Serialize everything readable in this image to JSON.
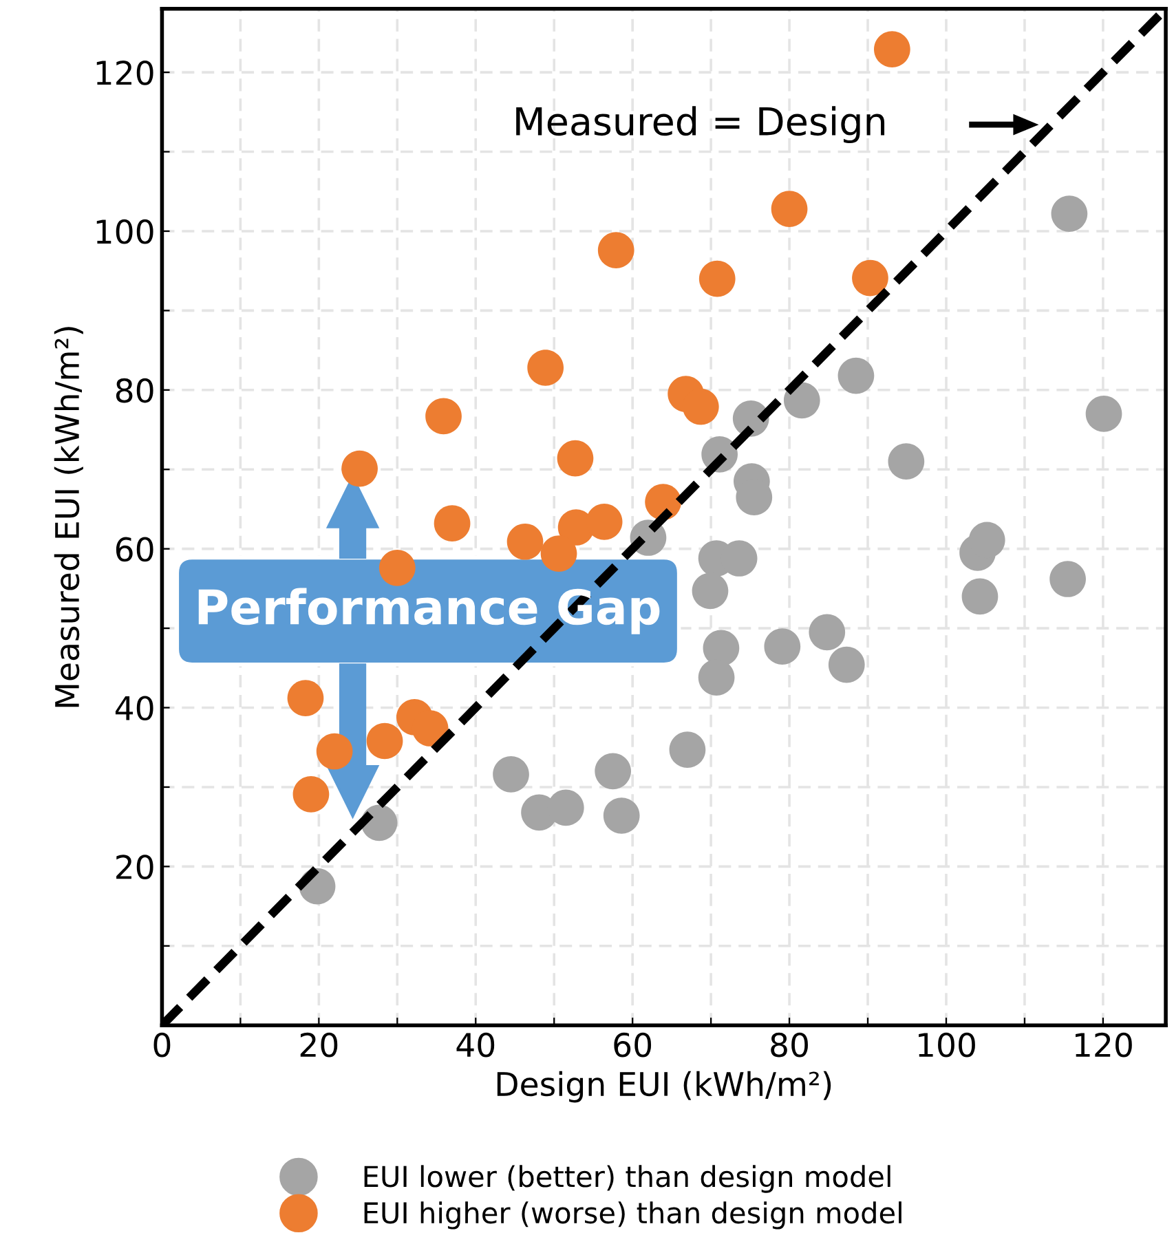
{
  "chart_data": {
    "type": "scatter",
    "xlabel": "Design EUI (kWh/m²)",
    "ylabel": "Measured EUI (kWh/m²)",
    "xlim": [
      0,
      128
    ],
    "ylim": [
      0,
      128
    ],
    "xticks": [
      0,
      {
        "value": 10,
        "label": null
      },
      20,
      {
        "value": 30,
        "label": null
      },
      40,
      {
        "value": 50,
        "label": null
      },
      60,
      {
        "value": 70,
        "label": null
      },
      80,
      {
        "value": 90,
        "label": null
      },
      100,
      {
        "value": 110,
        "label": null
      },
      120
    ],
    "yticks": [
      {
        "value": 10,
        "label": null
      },
      20,
      {
        "value": 30,
        "label": null
      },
      40,
      {
        "value": 50,
        "label": null
      },
      60,
      {
        "value": 70,
        "label": null
      },
      80,
      {
        "value": 90,
        "label": null
      },
      100,
      {
        "value": 110,
        "label": null
      },
      120
    ],
    "grid": true,
    "legend": "bottom",
    "marker": "circle",
    "series": [
      {
        "name": "EUI lower (better) than design model",
        "color": "#a5a5a5",
        "x": [
          115.7,
          88.5,
          81.6,
          120.1,
          75.1,
          94.9,
          71.1,
          75.2,
          75.5,
          62.0,
          70.7,
          73.6,
          104.0,
          105.2,
          115.5,
          104.3,
          69.9,
          71.3,
          70.7,
          79.1,
          84.8,
          87.3,
          67.0,
          57.5,
          58.6,
          44.5,
          48.1,
          51.5,
          27.7,
          19.8
        ],
        "values": [
          102.2,
          81.8,
          78.7,
          77.0,
          76.4,
          71.0,
          71.9,
          68.5,
          66.5,
          61.4,
          58.8,
          58.8,
          59.5,
          61.1,
          56.2,
          54.0,
          54.7,
          47.5,
          43.8,
          47.7,
          49.5,
          45.4,
          34.7,
          32.0,
          26.4,
          31.6,
          26.8,
          27.4,
          25.5,
          17.5
        ]
      },
      {
        "name": "EUI higher (worse) than design model",
        "color": "#ed7d31",
        "x": [
          93.1,
          80.0,
          57.9,
          70.8,
          90.3,
          48.9,
          35.9,
          25.2,
          52.7,
          66.8,
          68.7,
          37.0,
          46.3,
          52.8,
          56.4,
          50.6,
          63.9,
          30.0,
          19.0,
          22.0,
          28.4,
          32.2,
          34.2,
          18.3
        ],
        "values": [
          122.9,
          102.8,
          97.6,
          94.0,
          94.1,
          82.8,
          76.7,
          70.1,
          71.4,
          79.5,
          77.9,
          63.2,
          60.9,
          62.7,
          63.4,
          59.4,
          65.9,
          57.6,
          29.1,
          34.5,
          35.8,
          38.8,
          37.4,
          41.2
        ]
      },
      {
        "type": "line",
        "color": "#000000",
        "line_style": "dashed",
        "marker": "none",
        "x": [
          0,
          128
        ],
        "values": [
          0,
          128
        ]
      }
    ],
    "annotations": [
      "Measured = Design",
      "Performance Gap"
    ]
  }
}
